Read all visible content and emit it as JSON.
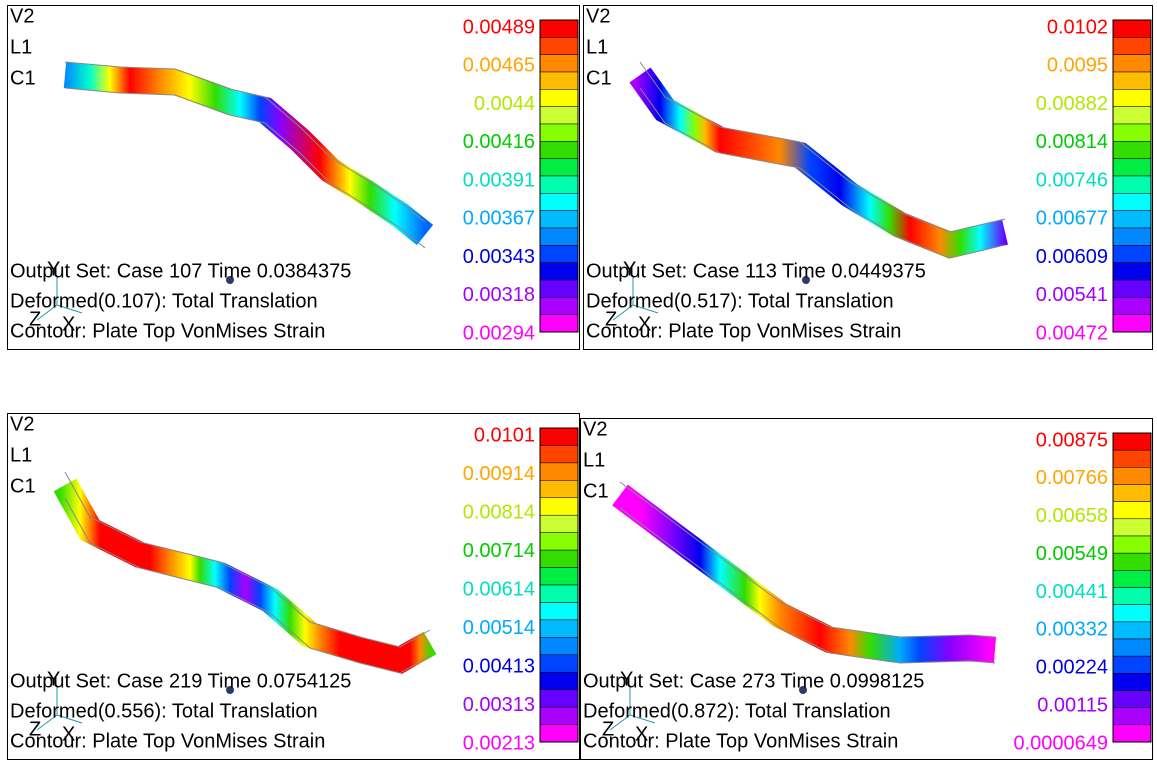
{
  "panels": [
    {
      "header": [
        "V2",
        "L1",
        "C1"
      ],
      "axes": [
        "Y",
        "Z",
        "X"
      ],
      "info": [
        "Output Set: Case 107 Time 0.0384375",
        "Deformed(0.107): Total Translation",
        "Contour: Plate Top VonMises Strain"
      ],
      "legend": [
        "0.00489",
        "0.00465",
        "0.0044",
        "0.00416",
        "0.00391",
        "0.00367",
        "0.00343",
        "0.00318",
        "0.00294"
      ]
    },
    {
      "header": [
        "V2",
        "L1",
        "C1"
      ],
      "axes": [
        "Y",
        "Z",
        "X"
      ],
      "info": [
        "Output Set: Case 113 Time 0.0449375",
        "Deformed(0.517): Total Translation",
        "Contour: Plate Top VonMises Strain"
      ],
      "legend": [
        "0.0102",
        "0.0095",
        "0.00882",
        "0.00814",
        "0.00746",
        "0.00677",
        "0.00609",
        "0.00541",
        "0.00472"
      ]
    },
    {
      "header": [
        "V2",
        "L1",
        "C1"
      ],
      "axes": [
        "Y",
        "Z",
        "X"
      ],
      "info": [
        "Output Set: Case 219 Time 0.0754125",
        "Deformed(0.556): Total Translation",
        "Contour: Plate Top VonMises Strain"
      ],
      "legend": [
        "0.0101",
        "0.00914",
        "0.00814",
        "0.00714",
        "0.00614",
        "0.00514",
        "0.00413",
        "0.00313",
        "0.00213"
      ]
    },
    {
      "header": [
        "V2",
        "L1",
        "C1"
      ],
      "axes": [
        "Y",
        "Z",
        "X"
      ],
      "info": [
        "Output Set: Case 273 Time 0.0998125",
        "Deformed(0.872): Total Translation",
        "Contour: Plate Top VonMises Strain"
      ],
      "legend": [
        "0.00875",
        "0.00766",
        "0.00658",
        "0.00549",
        "0.00441",
        "0.00332",
        "0.00224",
        "0.00115",
        "0.0000649"
      ]
    }
  ]
}
